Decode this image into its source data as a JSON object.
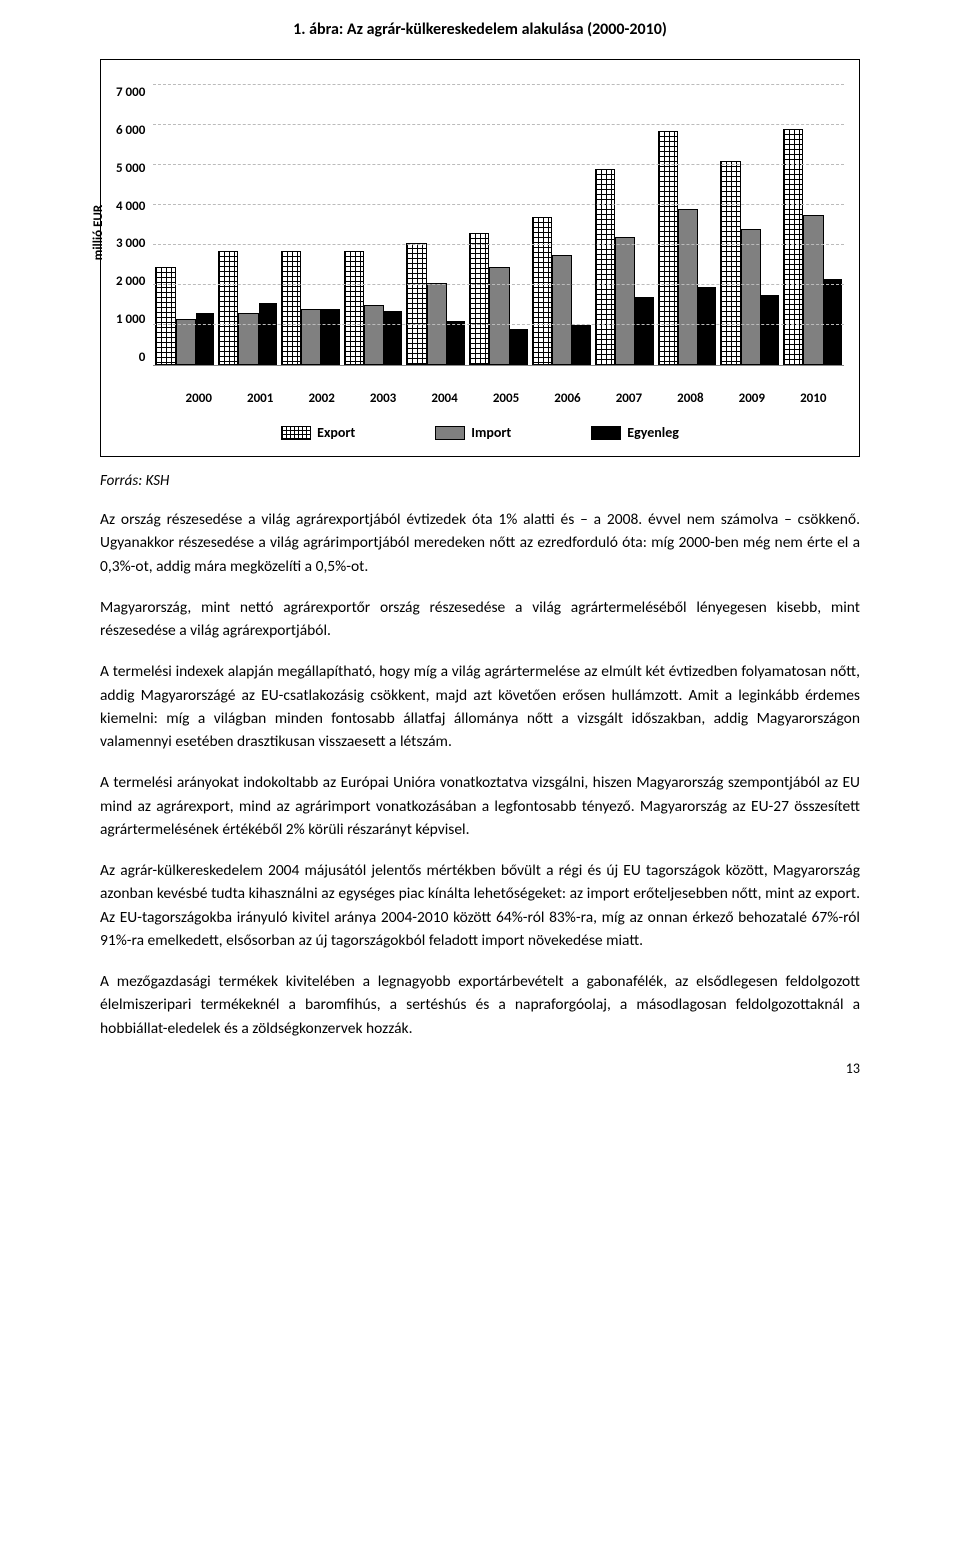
{
  "chart": {
    "title": "1. ábra: Az agrár-külkereskedelem alakulása (2000-2010)",
    "type": "bar",
    "y_label": "millió EUR",
    "ylim": [
      0,
      7000
    ],
    "ytick_step": 1000,
    "y_ticks": [
      "7 000",
      "6 000",
      "5 000",
      "4 000",
      "3 000",
      "2 000",
      "1 000",
      "0"
    ],
    "categories": [
      "2000",
      "2001",
      "2002",
      "2003",
      "2004",
      "2005",
      "2006",
      "2007",
      "2008",
      "2009",
      "2010"
    ],
    "series": {
      "export": {
        "label": "Export",
        "values": [
          2400,
          2800,
          2800,
          2800,
          3000,
          3250,
          3650,
          4850,
          5800,
          5050,
          5850
        ],
        "fill": "crosshatch",
        "color": "#ffffff"
      },
      "import": {
        "label": "Import",
        "values": [
          1100,
          1250,
          1350,
          1450,
          2000,
          2400,
          2700,
          3150,
          3850,
          3350,
          3700
        ],
        "color": "#808080"
      },
      "balance": {
        "label": "Egyenleg",
        "values": [
          1300,
          1550,
          1400,
          1350,
          1100,
          900,
          1000,
          1700,
          1950,
          1750,
          2150
        ],
        "color": "#000000"
      }
    },
    "grid_color": "#bbbbbb",
    "background_color": "#ffffff",
    "title_fontsize": 16,
    "label_fontsize": 13
  },
  "source": "Forrás: KSH",
  "paragraphs": [
    "Az ország részesedése a világ agrárexportjából évtizedek óta 1% alatti és – a 2008. évvel nem számolva – csökkenő. Ugyanakkor részesedése a világ agrárimportjából meredeken nőtt az ezredforduló óta: míg 2000-ben még nem érte el a 0,3%-ot, addig mára megközelíti a 0,5%-ot.",
    "Magyarország, mint nettó agrárexportőr ország részesedése a világ agrártermeléséből lényegesen kisebb, mint részesedése a világ agrárexportjából.",
    "A termelési indexek alapján megállapítható, hogy míg a világ agrártermelése az elmúlt két évtizedben folyamatosan nőtt, addig Magyarországé az EU-csatlakozásig csökkent, majd azt követően erősen hullámzott. Amit a leginkább érdemes kiemelni: míg a világban minden fontosabb állatfaj állománya nőtt a vizsgált időszakban, addig Magyarországon valamennyi esetében drasztikusan visszaesett a létszám.",
    "A termelési arányokat indokoltabb az Európai Unióra vonatkoztatva vizsgálni, hiszen Magyarország szempontjából az EU mind az agrárexport, mind az agrárimport vonatkozásában a legfontosabb tényező. Magyarország az EU-27 összesített agrártermelésének értékéből 2% körüli részarányt képvisel.",
    "Az agrár-külkereskedelem 2004 májusától jelentős mértékben bővült a régi és új EU tagországok között, Magyarország azonban kevésbé tudta kihasználni az egységes piac kínálta lehetőségeket: az import erőteljesebben nőtt, mint az export. Az EU-tagországokba irányuló kivitel aránya 2004-2010 között 64%-ról 83%-ra, míg az onnan érkező behozatalé 67%-ról 91%-ra emelkedett, elsősorban az új tagországokból feladott import növekedése miatt.",
    "A mezőgazdasági termékek kivitelében a legnagyobb exportárbevételt a gabonafélék, az elsődlegesen feldolgozott élelmiszeripari termékeknél a baromfihús, a sertéshús és a napraforgóolaj, a másodlagosan feldolgozottaknál a hobbiállat-eledelek és a zöldségkonzervek hozzák."
  ],
  "page_number": "13"
}
